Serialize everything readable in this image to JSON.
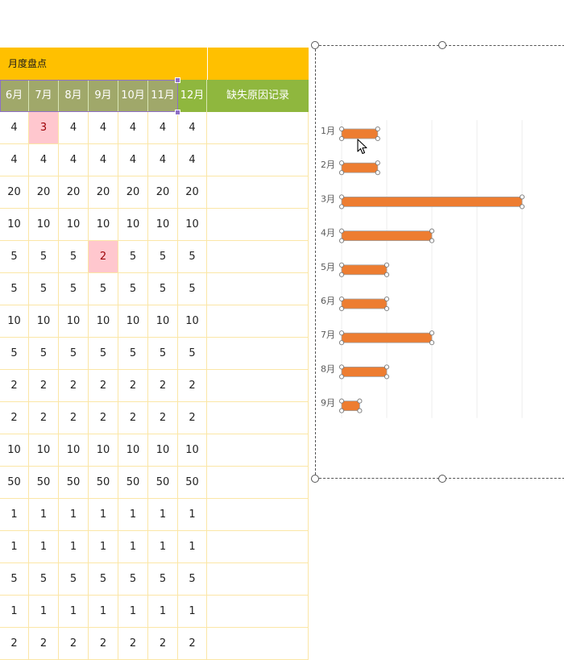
{
  "table": {
    "banner_title": "月度盘点",
    "columns": [
      "6月",
      "7月",
      "8月",
      "9月",
      "10月",
      "11月",
      "12月"
    ],
    "reason_header": "缺失原因记录",
    "rows": [
      {
        "values": [
          "4",
          "3",
          "4",
          "4",
          "4",
          "4",
          "4"
        ],
        "missing": [
          1
        ]
      },
      {
        "values": [
          "4",
          "4",
          "4",
          "4",
          "4",
          "4",
          "4"
        ],
        "missing": []
      },
      {
        "values": [
          "20",
          "20",
          "20",
          "20",
          "20",
          "20",
          "20"
        ],
        "missing": []
      },
      {
        "values": [
          "10",
          "10",
          "10",
          "10",
          "10",
          "10",
          "10"
        ],
        "missing": []
      },
      {
        "values": [
          "5",
          "5",
          "5",
          "2",
          "5",
          "5",
          "5"
        ],
        "missing": [
          3
        ]
      },
      {
        "values": [
          "5",
          "5",
          "5",
          "5",
          "5",
          "5",
          "5"
        ],
        "missing": []
      },
      {
        "values": [
          "10",
          "10",
          "10",
          "10",
          "10",
          "10",
          "10"
        ],
        "missing": []
      },
      {
        "values": [
          "5",
          "5",
          "5",
          "5",
          "5",
          "5",
          "5"
        ],
        "missing": []
      },
      {
        "values": [
          "2",
          "2",
          "2",
          "2",
          "2",
          "2",
          "2"
        ],
        "missing": []
      },
      {
        "values": [
          "2",
          "2",
          "2",
          "2",
          "2",
          "2",
          "2"
        ],
        "missing": []
      },
      {
        "values": [
          "10",
          "10",
          "10",
          "10",
          "10",
          "10",
          "10"
        ],
        "missing": []
      },
      {
        "values": [
          "50",
          "50",
          "50",
          "50",
          "50",
          "50",
          "50"
        ],
        "missing": []
      },
      {
        "values": [
          "1",
          "1",
          "1",
          "1",
          "1",
          "1",
          "1"
        ],
        "missing": []
      },
      {
        "values": [
          "1",
          "1",
          "1",
          "1",
          "1",
          "1",
          "1"
        ],
        "missing": []
      },
      {
        "values": [
          "5",
          "5",
          "5",
          "5",
          "5",
          "5",
          "5"
        ],
        "missing": []
      },
      {
        "values": [
          "1",
          "1",
          "1",
          "1",
          "1",
          "1",
          "1"
        ],
        "missing": []
      },
      {
        "values": [
          "2",
          "2",
          "2",
          "2",
          "2",
          "2",
          "2"
        ],
        "missing": []
      }
    ]
  },
  "chart_data": {
    "type": "bar",
    "orientation": "horizontal",
    "categories": [
      "1月",
      "2月",
      "3月",
      "4月",
      "5月",
      "6月",
      "7月",
      "8月",
      "9月"
    ],
    "values": [
      0.8,
      0.8,
      4,
      2,
      1,
      1,
      2,
      1,
      0.4
    ],
    "xlim": [
      0,
      4.5
    ],
    "grid": true,
    "bar_color": "#ed7d31",
    "selected": true
  },
  "colors": {
    "banner": "#ffc000",
    "header": "#8fb73e",
    "missing_fill": "#ffc7ce",
    "missing_text": "#9c0006",
    "grid_line": "#fbe6a6"
  },
  "cursor": {
    "icon": "pointer-arrow-icon"
  }
}
